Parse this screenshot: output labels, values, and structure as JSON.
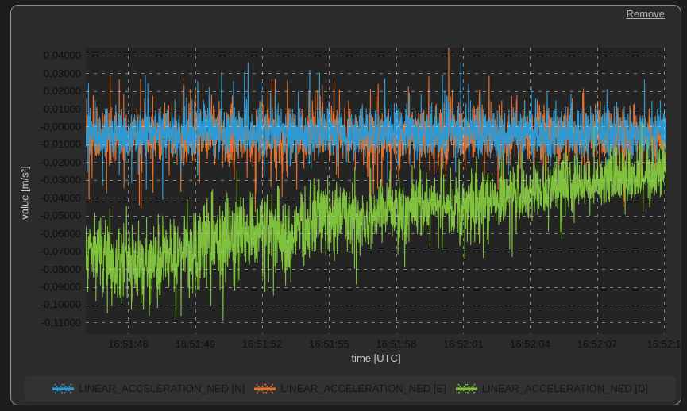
{
  "panel": {
    "remove_label": "Remove"
  },
  "theme": {
    "window_bg": "#1d1d1d",
    "panel_bg": "#2b2b2b",
    "canvas_bg": "#242424",
    "grid_color": "rgba(205,205,210,0.55)",
    "border": "#8d8d8d",
    "legend_bg": "#323232",
    "tick_text": "#0e0e0e",
    "axis_title": "#c9c9c9",
    "legend_text": "#161616",
    "link": "#b0b0b0"
  },
  "chart_data": {
    "type": "line",
    "title": "",
    "xlabel": "time [UTC]",
    "ylabel": "value [m/s²]",
    "grid": "dashed",
    "legend_position": "bottom",
    "x_tick_labels": [
      "16:51:46",
      "16:51:49",
      "16:51:52",
      "16:51:55",
      "16:51:58",
      "16:52:01",
      "16:52:04",
      "16:52:07",
      "16:52:1"
    ],
    "x_axis": {
      "span_seconds": 26,
      "first_tick_offset_s": 1.9,
      "tick_interval_s": 3
    },
    "y_tick_labels": [
      "0,04000",
      "0,03000",
      "0,02000",
      "0,01000",
      "-0,00000",
      "-0,01000",
      "-0,02000",
      "-0,03000",
      "-0,04000",
      "-0,05000",
      "-0,06000",
      "-0,07000",
      "-0,08000",
      "-0,09000",
      "-0,10000",
      "-0,11000"
    ],
    "y_tick_values": [
      0.04,
      0.03,
      0.02,
      0.01,
      0.0,
      -0.01,
      -0.02,
      -0.03,
      -0.04,
      -0.05,
      -0.06,
      -0.07,
      -0.08,
      -0.09,
      -0.1,
      -0.11
    ],
    "ylim": [
      -0.1165,
      0.0443
    ],
    "points_per_second": 90,
    "series": [
      {
        "name": "LINEAR_ACCELERATION_NED [E]",
        "legend_index": 1,
        "color": "#E5702B",
        "seed": 7,
        "mean_trend": [
          [
            0,
            -0.005
          ],
          [
            26,
            -0.005
          ]
        ],
        "sigma_trend": [
          [
            0,
            0.0075
          ],
          [
            26,
            0.0075
          ]
        ],
        "spike_prob": 0.06,
        "spike_min": 0.008,
        "spike_max": 0.032,
        "neg_bias": 0.5
      },
      {
        "name": "LINEAR_ACCELERATION_NED [N]",
        "legend_index": 0,
        "color": "#2D9AD4",
        "seed": 42,
        "mean_trend": [
          [
            0,
            -0.0035
          ],
          [
            26,
            -0.0035
          ]
        ],
        "sigma_trend": [
          [
            0,
            0.0068
          ],
          [
            26,
            0.0068
          ]
        ],
        "spike_prob": 0.055,
        "spike_min": 0.006,
        "spike_max": 0.029,
        "neg_bias": 0.5
      },
      {
        "name": "LINEAR_ACCELERATION_NED [D]",
        "legend_index": 2,
        "color": "#7FC03C",
        "seed": 13,
        "mean_trend": [
          [
            0,
            -0.072
          ],
          [
            1.5,
            -0.075
          ],
          [
            3,
            -0.077
          ],
          [
            4.5,
            -0.07
          ],
          [
            6,
            -0.064
          ],
          [
            7.5,
            -0.059
          ],
          [
            9,
            -0.062
          ],
          [
            10.5,
            -0.05
          ],
          [
            11.5,
            -0.047
          ],
          [
            12.5,
            -0.052
          ],
          [
            13.5,
            -0.047
          ],
          [
            15,
            -0.045
          ],
          [
            16.5,
            -0.044
          ],
          [
            18,
            -0.04
          ],
          [
            19.5,
            -0.038
          ],
          [
            21,
            -0.033
          ],
          [
            23,
            -0.03
          ],
          [
            26,
            -0.026
          ]
        ],
        "sigma_trend": [
          [
            0,
            0.0115
          ],
          [
            9,
            0.0115
          ],
          [
            11,
            0.0105
          ],
          [
            13,
            0.0095
          ],
          [
            18,
            0.0085
          ],
          [
            26,
            0.0075
          ]
        ],
        "spike_prob": 0.05,
        "spike_min": 0.006,
        "spike_max": 0.022,
        "neg_bias": 0.78
      }
    ],
    "legend_order": [
      "LINEAR_ACCELERATION_NED [N]",
      "LINEAR_ACCELERATION_NED [E]",
      "LINEAR_ACCELERATION_NED [D]"
    ]
  }
}
